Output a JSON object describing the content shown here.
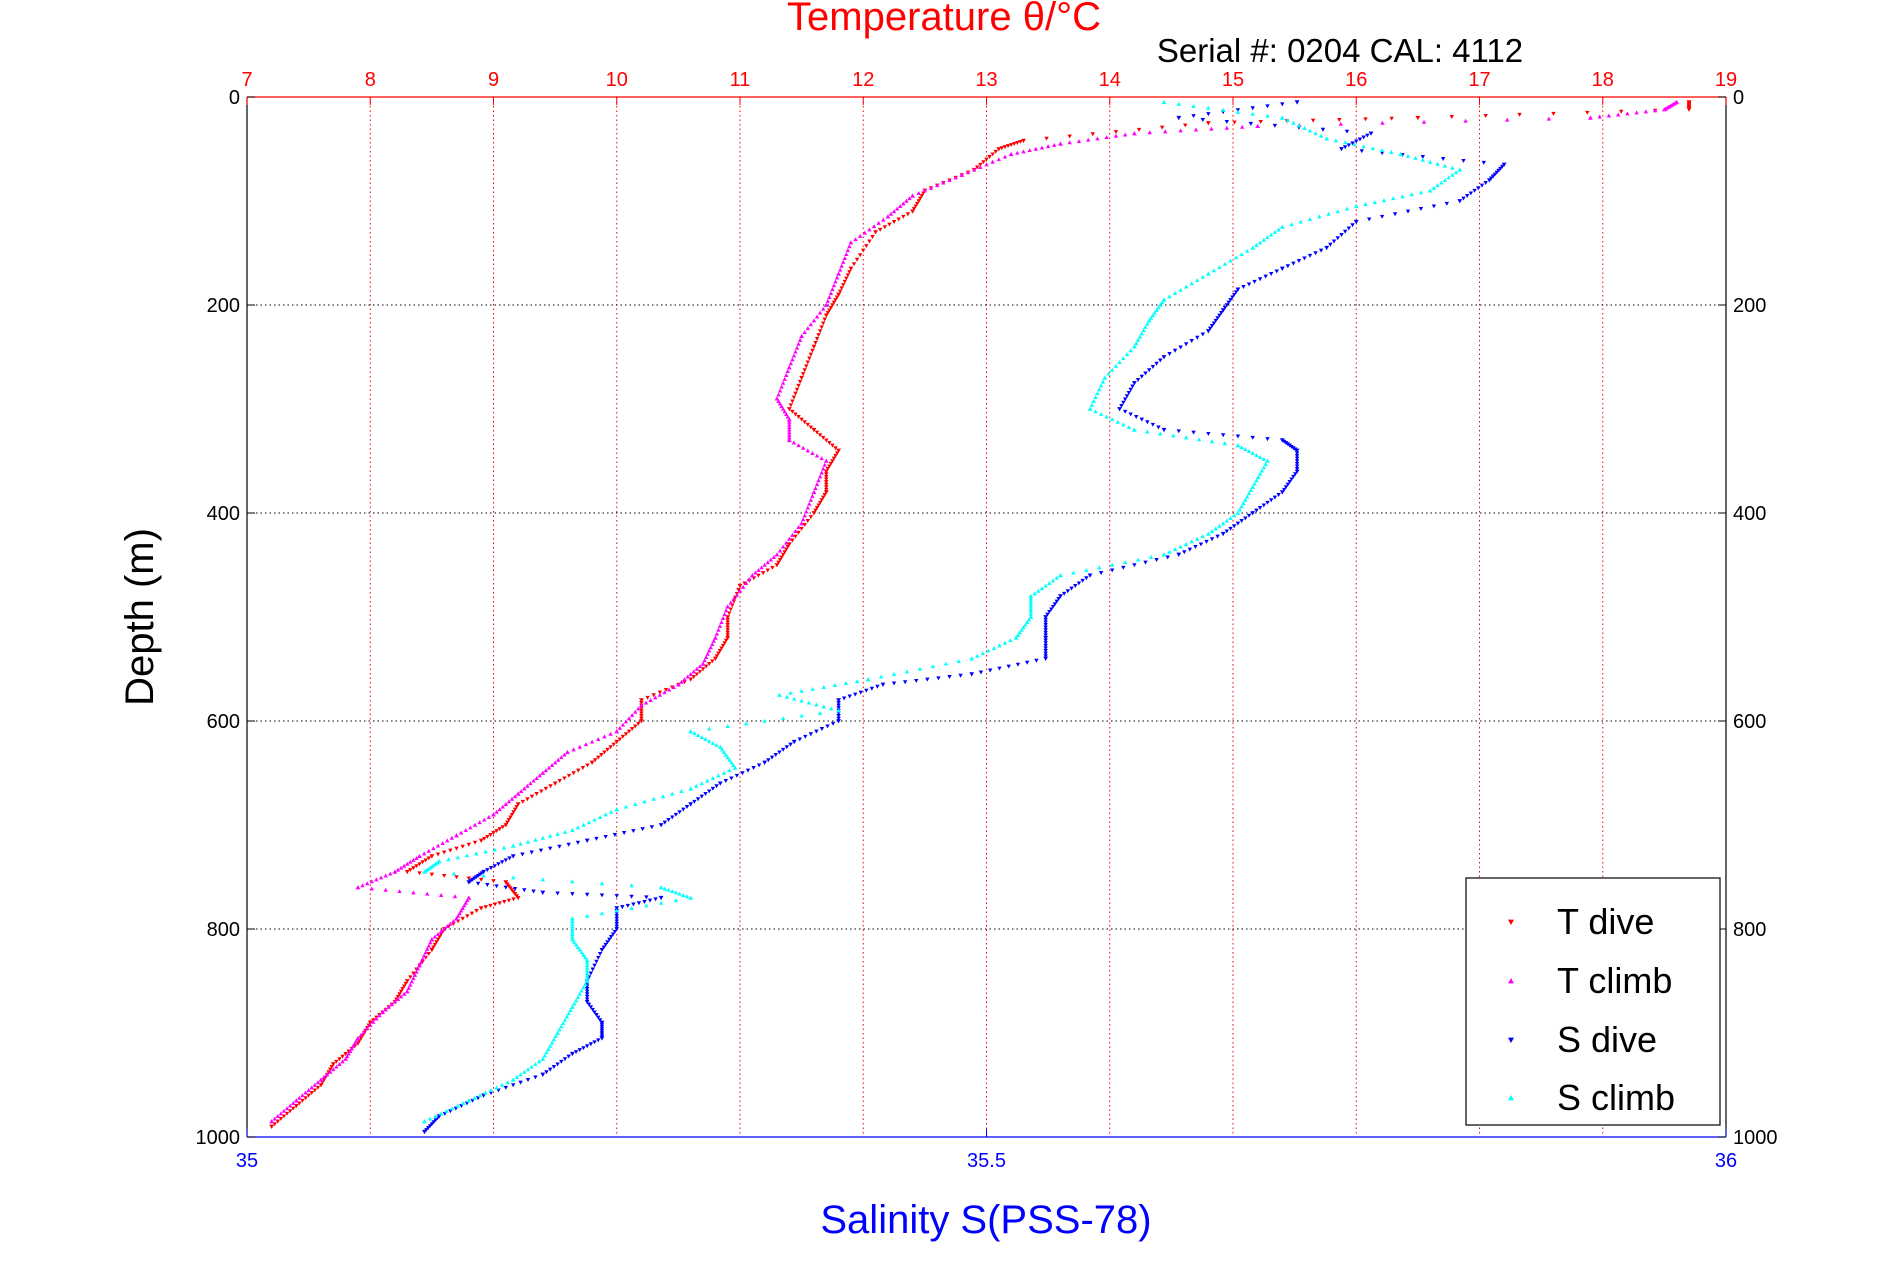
{
  "chart_data": {
    "type": "scatter",
    "title": "Temperature θ/°C",
    "subtitle": "Serial #: 0204  CAL: 4112",
    "ylabel": "Depth (m)",
    "xlabel": "Salinity S(PSS-78)",
    "y_axis": {
      "range": [
        0,
        1000
      ],
      "reversed": true,
      "ticks": [
        "0",
        "200",
        "400",
        "600",
        "800",
        "1000"
      ]
    },
    "temperature_axis": {
      "range": [
        7,
        19
      ],
      "position": "top",
      "ticks": [
        "7",
        "8",
        "9",
        "10",
        "11",
        "12",
        "13",
        "14",
        "15",
        "16",
        "17",
        "18",
        "19"
      ]
    },
    "salinity_axis": {
      "range": [
        35,
        36
      ],
      "position": "bottom",
      "ticks": [
        "35",
        "35.5",
        "36"
      ]
    },
    "grid": true,
    "legend_position": "bottom-right",
    "colors": {
      "t_dive": "#ff0000",
      "t_climb": "#ff00ff",
      "s_dive": "#0000ff",
      "s_climb": "#00ffff"
    },
    "series": [
      {
        "name": "T dive",
        "axis": "temperature",
        "marker": "triangle-down",
        "points": [
          [
            18.7,
            5
          ],
          [
            18.7,
            12
          ],
          [
            16.5,
            20
          ],
          [
            14.8,
            25
          ],
          [
            13.3,
            42
          ],
          [
            13.1,
            50
          ],
          [
            12.9,
            70
          ],
          [
            12.5,
            90
          ],
          [
            12.4,
            110
          ],
          [
            12.1,
            130
          ],
          [
            11.9,
            165
          ],
          [
            11.8,
            190
          ],
          [
            11.7,
            210
          ],
          [
            11.6,
            240
          ],
          [
            11.5,
            270
          ],
          [
            11.4,
            300
          ],
          [
            11.6,
            320
          ],
          [
            11.8,
            340
          ],
          [
            11.7,
            360
          ],
          [
            11.7,
            380
          ],
          [
            11.6,
            400
          ],
          [
            11.4,
            430
          ],
          [
            11.3,
            450
          ],
          [
            11.0,
            470
          ],
          [
            10.9,
            500
          ],
          [
            10.9,
            520
          ],
          [
            10.8,
            540
          ],
          [
            10.6,
            560
          ],
          [
            10.2,
            580
          ],
          [
            10.2,
            600
          ],
          [
            10.0,
            620
          ],
          [
            9.8,
            640
          ],
          [
            9.5,
            660
          ],
          [
            9.2,
            680
          ],
          [
            9.1,
            700
          ],
          [
            8.9,
            715
          ],
          [
            8.5,
            730
          ],
          [
            8.3,
            745
          ],
          [
            9.1,
            755
          ],
          [
            9.2,
            770
          ],
          [
            8.9,
            780
          ],
          [
            8.6,
            800
          ],
          [
            8.5,
            820
          ],
          [
            8.3,
            850
          ],
          [
            8.2,
            870
          ],
          [
            8.0,
            890
          ],
          [
            7.9,
            910
          ],
          [
            7.7,
            930
          ],
          [
            7.6,
            950
          ],
          [
            7.4,
            970
          ],
          [
            7.2,
            990
          ]
        ]
      },
      {
        "name": "T climb",
        "axis": "temperature",
        "marker": "triangle-up",
        "points": [
          [
            18.6,
            5
          ],
          [
            18.5,
            12
          ],
          [
            17.9,
            20
          ],
          [
            15.2,
            28
          ],
          [
            14.2,
            35
          ],
          [
            13.6,
            45
          ],
          [
            13.2,
            55
          ],
          [
            12.8,
            75
          ],
          [
            12.4,
            95
          ],
          [
            12.2,
            115
          ],
          [
            11.9,
            140
          ],
          [
            11.8,
            170
          ],
          [
            11.7,
            200
          ],
          [
            11.5,
            230
          ],
          [
            11.4,
            260
          ],
          [
            11.3,
            290
          ],
          [
            11.4,
            310
          ],
          [
            11.4,
            330
          ],
          [
            11.7,
            350
          ],
          [
            11.6,
            380
          ],
          [
            11.5,
            410
          ],
          [
            11.3,
            440
          ],
          [
            11.1,
            460
          ],
          [
            10.9,
            490
          ],
          [
            10.8,
            520
          ],
          [
            10.7,
            545
          ],
          [
            10.5,
            565
          ],
          [
            10.2,
            585
          ],
          [
            10.0,
            610
          ],
          [
            9.6,
            630
          ],
          [
            9.4,
            650
          ],
          [
            9.2,
            670
          ],
          [
            9.0,
            690
          ],
          [
            8.7,
            710
          ],
          [
            8.4,
            730
          ],
          [
            8.2,
            745
          ],
          [
            7.9,
            760
          ],
          [
            8.8,
            770
          ],
          [
            8.7,
            790
          ],
          [
            8.5,
            810
          ],
          [
            8.4,
            835
          ],
          [
            8.3,
            860
          ],
          [
            8.1,
            880
          ],
          [
            7.9,
            905
          ],
          [
            7.8,
            925
          ],
          [
            7.6,
            945
          ],
          [
            7.4,
            965
          ],
          [
            7.2,
            985
          ]
        ]
      },
      {
        "name": "S dive",
        "axis": "salinity",
        "marker": "triangle-down",
        "points": [
          [
            35.71,
            5
          ],
          [
            35.63,
            20
          ],
          [
            35.76,
            35
          ],
          [
            35.74,
            50
          ],
          [
            35.85,
            65
          ],
          [
            35.84,
            80
          ],
          [
            35.82,
            100
          ],
          [
            35.75,
            120
          ],
          [
            35.73,
            145
          ],
          [
            35.7,
            165
          ],
          [
            35.67,
            185
          ],
          [
            35.66,
            205
          ],
          [
            35.65,
            225
          ],
          [
            35.62,
            250
          ],
          [
            35.6,
            275
          ],
          [
            35.59,
            300
          ],
          [
            35.62,
            320
          ],
          [
            35.7,
            330
          ],
          [
            35.71,
            340
          ],
          [
            35.71,
            360
          ],
          [
            35.7,
            380
          ],
          [
            35.68,
            400
          ],
          [
            35.66,
            420
          ],
          [
            35.63,
            440
          ],
          [
            35.57,
            460
          ],
          [
            35.55,
            480
          ],
          [
            35.54,
            500
          ],
          [
            35.54,
            520
          ],
          [
            35.54,
            540
          ],
          [
            35.49,
            555
          ],
          [
            35.43,
            565
          ],
          [
            35.4,
            580
          ],
          [
            35.4,
            600
          ],
          [
            35.37,
            620
          ],
          [
            35.35,
            640
          ],
          [
            35.32,
            660
          ],
          [
            35.3,
            680
          ],
          [
            35.28,
            700
          ],
          [
            35.23,
            715
          ],
          [
            35.18,
            730
          ],
          [
            35.16,
            745
          ],
          [
            35.15,
            755
          ],
          [
            35.2,
            765
          ],
          [
            35.28,
            770
          ],
          [
            35.25,
            780
          ],
          [
            35.25,
            800
          ],
          [
            35.24,
            820
          ],
          [
            35.23,
            850
          ],
          [
            35.23,
            870
          ],
          [
            35.24,
            890
          ],
          [
            35.24,
            905
          ],
          [
            35.22,
            920
          ],
          [
            35.2,
            940
          ],
          [
            35.16,
            960
          ],
          [
            35.13,
            980
          ],
          [
            35.12,
            995
          ]
        ]
      },
      {
        "name": "S climb",
        "axis": "salinity",
        "marker": "triangle-up",
        "points": [
          [
            35.62,
            5
          ],
          [
            35.7,
            20
          ],
          [
            35.73,
            40
          ],
          [
            35.78,
            55
          ],
          [
            35.82,
            70
          ],
          [
            35.8,
            90
          ],
          [
            35.75,
            105
          ],
          [
            35.7,
            125
          ],
          [
            35.68,
            145
          ],
          [
            35.65,
            170
          ],
          [
            35.62,
            195
          ],
          [
            35.61,
            215
          ],
          [
            35.6,
            240
          ],
          [
            35.58,
            270
          ],
          [
            35.57,
            300
          ],
          [
            35.6,
            320
          ],
          [
            35.67,
            335
          ],
          [
            35.69,
            350
          ],
          [
            35.68,
            375
          ],
          [
            35.67,
            400
          ],
          [
            35.65,
            420
          ],
          [
            35.62,
            440
          ],
          [
            35.55,
            460
          ],
          [
            35.53,
            480
          ],
          [
            35.53,
            500
          ],
          [
            35.52,
            520
          ],
          [
            35.49,
            540
          ],
          [
            35.42,
            560
          ],
          [
            35.36,
            575
          ],
          [
            35.4,
            590
          ],
          [
            35.3,
            610
          ],
          [
            35.32,
            625
          ],
          [
            35.33,
            645
          ],
          [
            35.3,
            665
          ],
          [
            35.25,
            685
          ],
          [
            35.22,
            705
          ],
          [
            35.18,
            720
          ],
          [
            35.13,
            735
          ],
          [
            35.12,
            745
          ],
          [
            35.28,
            760
          ],
          [
            35.3,
            770
          ],
          [
            35.22,
            790
          ],
          [
            35.22,
            810
          ],
          [
            35.23,
            830
          ],
          [
            35.23,
            850
          ],
          [
            35.22,
            875
          ],
          [
            35.21,
            900
          ],
          [
            35.2,
            925
          ],
          [
            35.18,
            945
          ],
          [
            35.15,
            965
          ],
          [
            35.12,
            985
          ]
        ]
      }
    ]
  }
}
